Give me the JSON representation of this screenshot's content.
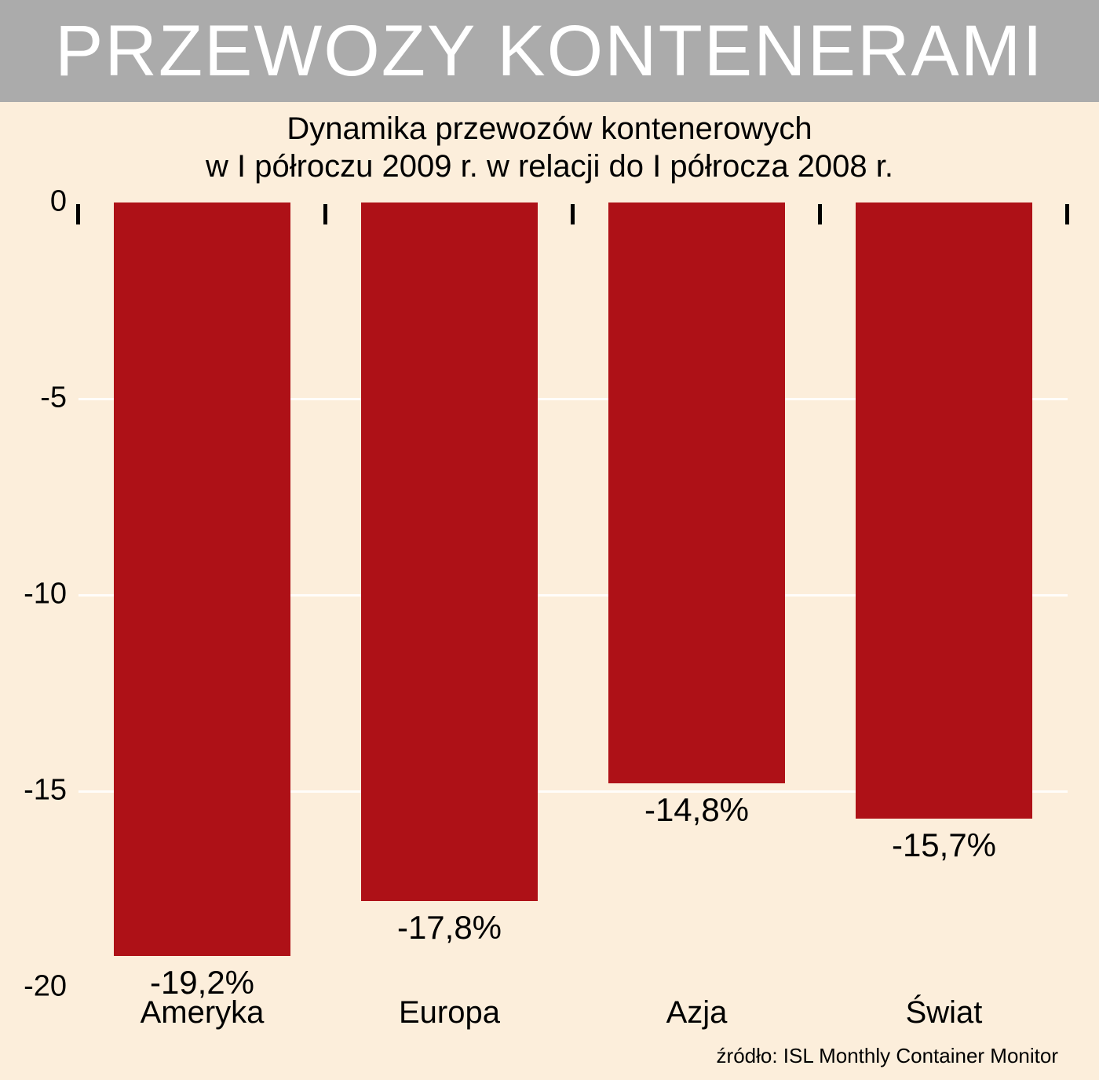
{
  "header": {
    "title": "PRZEWOZY KONTENERAMI"
  },
  "chart_data": {
    "type": "bar",
    "title": "Dynamika przewozów kontenerowych w I półroczu 2009 r. w relacji do I półrocza 2008 r.",
    "title_lines": [
      "Dynamika przewozów kontenerowych",
      "w I półroczu 2009 r. w relacji do I półrocza 2008 r."
    ],
    "categories": [
      "Ameryka",
      "Europa",
      "Azja",
      "Świat"
    ],
    "values": [
      -19.2,
      -17.8,
      -14.8,
      -15.7
    ],
    "value_labels": [
      "-19,2%",
      "-17,8%",
      "-14,8%",
      "-15,7%"
    ],
    "xlabel": "",
    "ylabel": "",
    "ylim": [
      -20,
      0
    ],
    "yticks": [
      0,
      -5,
      -10,
      -15,
      -20
    ],
    "ytick_labels": [
      "0",
      "-5",
      "-10",
      "-15",
      "-20"
    ],
    "bar_color": "#ae1117",
    "grid": true,
    "legend": "none"
  },
  "footer": {
    "source": "źródło: ISL Monthly Container Monitor"
  },
  "colors": {
    "banner_bg": "#ababab",
    "banner_text": "#ffffff",
    "background": "#fceedb",
    "bar": "#ae1117",
    "text": "#000000"
  }
}
